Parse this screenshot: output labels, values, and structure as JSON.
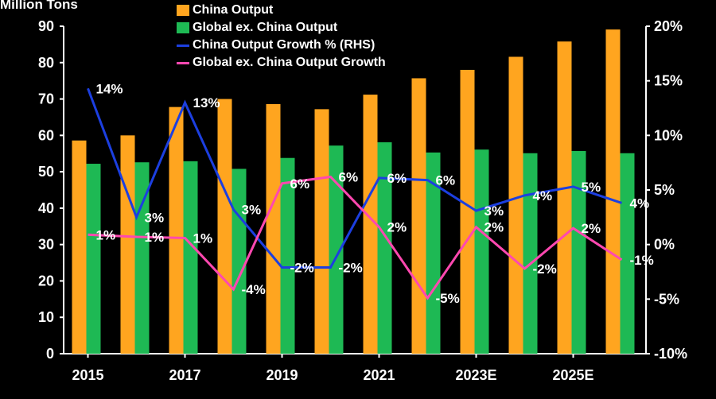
{
  "chart_data": {
    "type": "bar",
    "ylabel": "Million Tons",
    "ylim": [
      0,
      90
    ],
    "y2lim": [
      -10,
      20
    ],
    "y_ticks": [
      "0",
      "10",
      "20",
      "30",
      "40",
      "50",
      "60",
      "70",
      "80",
      "90"
    ],
    "y2_ticks": [
      "-10%",
      "-5%",
      "0%",
      "5%",
      "10%",
      "15%",
      "20%"
    ],
    "categories": [
      "2015",
      "2016",
      "2017",
      "2018",
      "2019",
      "2020",
      "2021",
      "2022",
      "2023E",
      "2024E",
      "2025E",
      "2026E"
    ],
    "x_tick_labels": [
      "2015",
      "2017",
      "2019",
      "2021",
      "2023E",
      "2025E"
    ],
    "legend_position": "top",
    "series": [
      {
        "name": "China Output",
        "type": "bar",
        "axis": "left",
        "color": "#FFA51F",
        "values": [
          58.6,
          60.0,
          67.8,
          70.0,
          68.6,
          67.2,
          71.2,
          75.7,
          78.0,
          81.6,
          85.8,
          89.1
        ]
      },
      {
        "name": "Global ex. China Output",
        "type": "bar",
        "axis": "left",
        "color": "#1EB954",
        "values": [
          52.2,
          52.6,
          52.9,
          50.8,
          53.8,
          57.2,
          58.1,
          55.3,
          56.1,
          55.1,
          55.7,
          55.1
        ]
      },
      {
        "name": "China Output Growth % (RHS)",
        "type": "line",
        "axis": "right",
        "color": "#1C3FE0",
        "values": [
          14.3,
          2.5,
          13.0,
          3.2,
          -2.1,
          -2.1,
          6.1,
          5.9,
          3.1,
          4.5,
          5.3,
          3.8
        ],
        "labels": [
          "14%",
          "3%",
          "13%",
          "3%",
          "-2%",
          "-2%",
          "6%",
          "6%",
          "3%",
          "4%",
          "5%",
          "4%"
        ]
      },
      {
        "name": "Global ex. China Output Growth",
        "type": "line",
        "axis": "right",
        "color": "#FF48B0",
        "values": [
          0.9,
          0.7,
          0.6,
          -4.1,
          5.6,
          6.2,
          1.6,
          -4.9,
          1.6,
          -2.2,
          1.5,
          -1.4
        ],
        "labels": [
          "1%",
          "1%",
          "1%",
          "-4%",
          "6%",
          "6%",
          "2%",
          "-5%",
          "2%",
          "-2%",
          "2%",
          "-1%"
        ]
      }
    ]
  }
}
